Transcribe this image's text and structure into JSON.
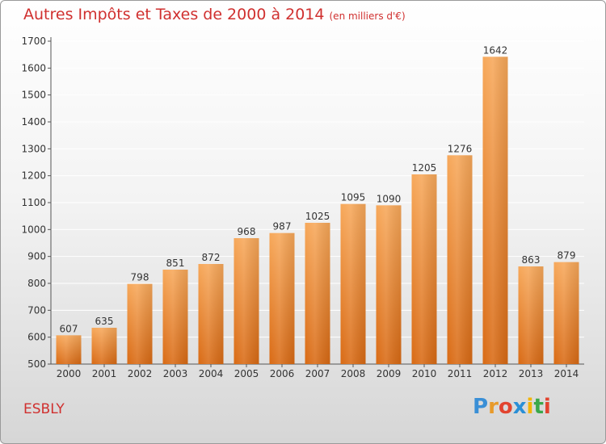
{
  "header": {
    "title": "Autres Impôts et Taxes de 2000 à 2014",
    "subtitle": "(en milliers d'€)"
  },
  "footer": {
    "location": "ESBLY",
    "logo_letters": [
      "P",
      "r",
      "o",
      "x",
      "i",
      "t",
      "i"
    ],
    "logo_colors": [
      "#3a8fd6",
      "#e89a2a",
      "#e2442f",
      "#2a8fd6",
      "#f2b400",
      "#3aa84a",
      "#e2442f"
    ]
  },
  "chart_data": {
    "type": "bar",
    "title": "Autres Impôts et Taxes de 2000 à 2014",
    "subtitle": "(en milliers d'€)",
    "categories": [
      "2000",
      "2001",
      "2002",
      "2003",
      "2004",
      "2005",
      "2006",
      "2007",
      "2008",
      "2009",
      "2010",
      "2011",
      "2012",
      "2013",
      "2014"
    ],
    "values": [
      607,
      635,
      798,
      851,
      872,
      968,
      987,
      1025,
      1095,
      1090,
      1205,
      1276,
      1642,
      863,
      879
    ],
    "data_labels": [
      "607",
      "635",
      "798",
      "851",
      "872",
      "968",
      "987",
      "1025",
      "1095",
      "1090",
      "1205",
      "1276",
      "1642",
      "863",
      "879"
    ],
    "yticks": [
      "500",
      "600",
      "700",
      "800",
      "900",
      "1000",
      "1100",
      "1200",
      "1300",
      "1400",
      "1500",
      "1600",
      "1700"
    ],
    "ylim": [
      500,
      1700
    ],
    "grid": true,
    "bar_color_top": "#f7a85a",
    "bar_color_bottom": "#d96a14",
    "grid_color": "#ffffff"
  }
}
